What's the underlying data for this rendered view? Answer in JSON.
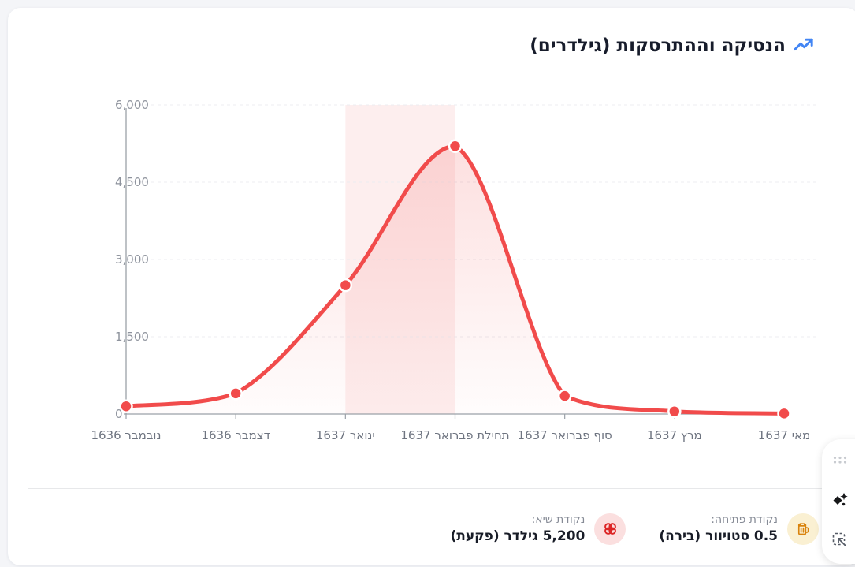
{
  "page": {
    "background_color": "#f4f5f8",
    "card_color": "#ffffff"
  },
  "header": {
    "title": "הנסיקה וההתרסקות (גילדרים)",
    "icon": "trending-up-icon",
    "icon_color": "#4285f4"
  },
  "chart_data": {
    "type": "line",
    "title": "הנסיקה וההתרסקות (גילדרים)",
    "xlabel": "",
    "ylabel": "",
    "categories": [
      "נובמבר 1636",
      "דצמבר 1636",
      "ינואר 1637",
      "תחילת פברואר 1637",
      "סוף פברואר 1637",
      "מרץ 1637",
      "מאי 1637"
    ],
    "values": [
      150,
      400,
      2500,
      5200,
      350,
      50,
      10
    ],
    "ylim": [
      0,
      6000
    ],
    "yticks": [
      0,
      1500,
      3000,
      4500,
      6000
    ],
    "ytick_labels": [
      "0",
      "1,500",
      "3,000",
      "4,500",
      "6,000"
    ],
    "grid": true,
    "legend_position": "none",
    "line_color": "#f14b4b",
    "point_border_color": "#ffffff",
    "axis_color": "#9ba1a8",
    "grid_color": "#ececf0",
    "highlight_band": {
      "from_category": "ינואר 1637",
      "to_category": "תחילת פברואר 1637",
      "color": "#fdeeee"
    }
  },
  "footer": {
    "opening": {
      "label": "נקודת פתיחה:",
      "value": "0.5 סטויוור (בירה)",
      "icon": "beer-mug-icon",
      "icon_color": "#d9830d",
      "icon_bg": "#faf0d2"
    },
    "peak": {
      "label": "נקודת שיא:",
      "value": "5,200 גילדר (פקעת)",
      "icon": "tulip-flower-icon",
      "icon_color": "#dc2626",
      "icon_bg": "#fbdfdf"
    }
  },
  "toolbar": {
    "icons": [
      "drag-handle-dots-icon",
      "ai-sparkle-icon",
      "select-area-icon"
    ]
  }
}
